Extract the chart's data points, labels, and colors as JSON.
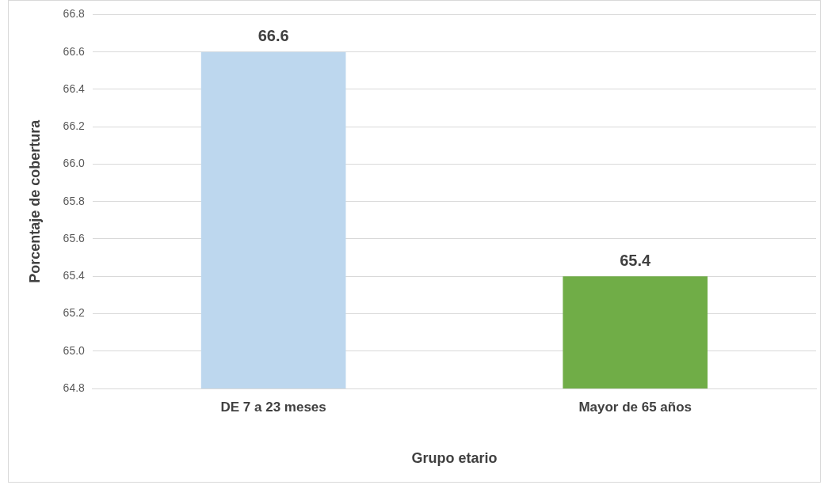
{
  "chart_data": {
    "type": "bar",
    "categories": [
      "DE 7 a 23 meses",
      "Mayor de 65 años"
    ],
    "values": [
      66.6,
      65.4
    ],
    "colors": [
      "#bdd7ee",
      "#70ad47"
    ],
    "xlabel": "Grupo etario",
    "ylabel": "Porcentaje de cobertura",
    "ylim": [
      64.8,
      66.8
    ],
    "yticks": [
      64.8,
      {
        "value": 65,
        "label": "65.0"
      },
      65.2,
      65.4,
      65.6,
      65.8,
      {
        "value": 66,
        "label": "66.0"
      },
      66.2,
      66.4,
      66.6,
      66.8
    ],
    "grid": "y",
    "data_labels": true,
    "legend": false
  }
}
